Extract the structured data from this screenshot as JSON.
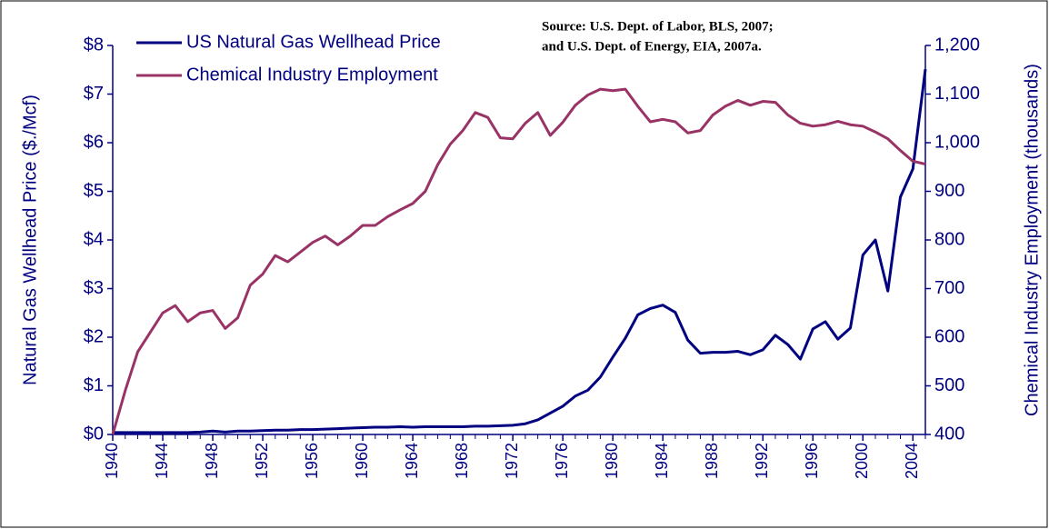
{
  "chart_data": {
    "type": "line",
    "annotation": [
      "Source:  U.S. Dept. of Labor, BLS, 2007;",
      "and U.S. Dept. of Energy, EIA, 2007a."
    ],
    "y_label": "Natural Gas Wellhead Price ($./Mcf)",
    "y2_label": "Chemical Industry Employment (thousands)",
    "x": [
      1940,
      1941,
      1942,
      1943,
      1944,
      1945,
      1946,
      1947,
      1948,
      1949,
      1950,
      1951,
      1952,
      1953,
      1954,
      1955,
      1956,
      1957,
      1958,
      1959,
      1960,
      1961,
      1962,
      1963,
      1964,
      1965,
      1966,
      1967,
      1968,
      1969,
      1970,
      1971,
      1972,
      1973,
      1974,
      1975,
      1976,
      1977,
      1978,
      1979,
      1980,
      1981,
      1982,
      1983,
      1984,
      1985,
      1986,
      1987,
      1988,
      1989,
      1990,
      1991,
      1992,
      1993,
      1994,
      1995,
      1996,
      1997,
      1998,
      1999,
      2000,
      2001,
      2002,
      2003,
      2004,
      2005
    ],
    "xlim": [
      1940,
      2005
    ],
    "xticks": [
      1940,
      1944,
      1948,
      1952,
      1956,
      1960,
      1964,
      1968,
      1972,
      1976,
      1980,
      1984,
      1988,
      1992,
      1996,
      2000,
      2004
    ],
    "ylim": [
      0,
      8
    ],
    "yticks": [
      {
        "value": 0,
        "label": "$0"
      },
      {
        "value": 1,
        "label": "$1"
      },
      {
        "value": 2,
        "label": "$2"
      },
      {
        "value": 3,
        "label": "$3"
      },
      {
        "value": 4,
        "label": "$4"
      },
      {
        "value": 5,
        "label": "$5"
      },
      {
        "value": 6,
        "label": "$6"
      },
      {
        "value": 7,
        "label": "$7"
      },
      {
        "value": 8,
        "label": "$8"
      }
    ],
    "y2lim": [
      400,
      1200
    ],
    "y2ticks": [
      400,
      500,
      600,
      700,
      800,
      900,
      {
        "value": 1000,
        "label": "1,000"
      },
      {
        "value": 1100,
        "label": "1,100"
      },
      {
        "value": 1200,
        "label": "1,200"
      }
    ],
    "legend": "upper left",
    "series": [
      {
        "name": "US Natural Gas Wellhead Price",
        "color": "#000080",
        "values": [
          0.04,
          0.04,
          0.04,
          0.04,
          0.04,
          0.04,
          0.04,
          0.05,
          0.07,
          0.05,
          0.07,
          0.07,
          0.08,
          0.09,
          0.09,
          0.1,
          0.1,
          0.11,
          0.12,
          0.13,
          0.14,
          0.15,
          0.15,
          0.16,
          0.15,
          0.16,
          0.16,
          0.16,
          0.16,
          0.17,
          0.17,
          0.18,
          0.19,
          0.22,
          0.3,
          0.44,
          0.58,
          0.79,
          0.91,
          1.18,
          1.59,
          1.98,
          2.46,
          2.59,
          2.66,
          2.51,
          1.94,
          1.67,
          1.69,
          1.69,
          1.71,
          1.64,
          1.74,
          2.04,
          1.85,
          1.55,
          2.17,
          2.32,
          1.96,
          2.19,
          3.69,
          4.0,
          2.95,
          4.88,
          5.46,
          7.51
        ]
      },
      {
        "name": "Chemical Industry Employment",
        "color": "#993366",
        "axis": "y2",
        "values": [
          400,
          490,
          570,
          610,
          650,
          665,
          632,
          650,
          655,
          618,
          640,
          707,
          730,
          768,
          755,
          775,
          795,
          808,
          790,
          808,
          830,
          830,
          848,
          862,
          875,
          900,
          955,
          997,
          1025,
          1062,
          1052,
          1010,
          1008,
          1040,
          1062,
          1015,
          1042,
          1077,
          1098,
          1110,
          1107,
          1110,
          1075,
          1043,
          1048,
          1043,
          1020,
          1025,
          1057,
          1075,
          1087,
          1077,
          1085,
          1083,
          1057,
          1040,
          1034,
          1037,
          1044,
          1037,
          1034,
          1022,
          1008,
          984,
          962,
          956
        ]
      }
    ]
  }
}
